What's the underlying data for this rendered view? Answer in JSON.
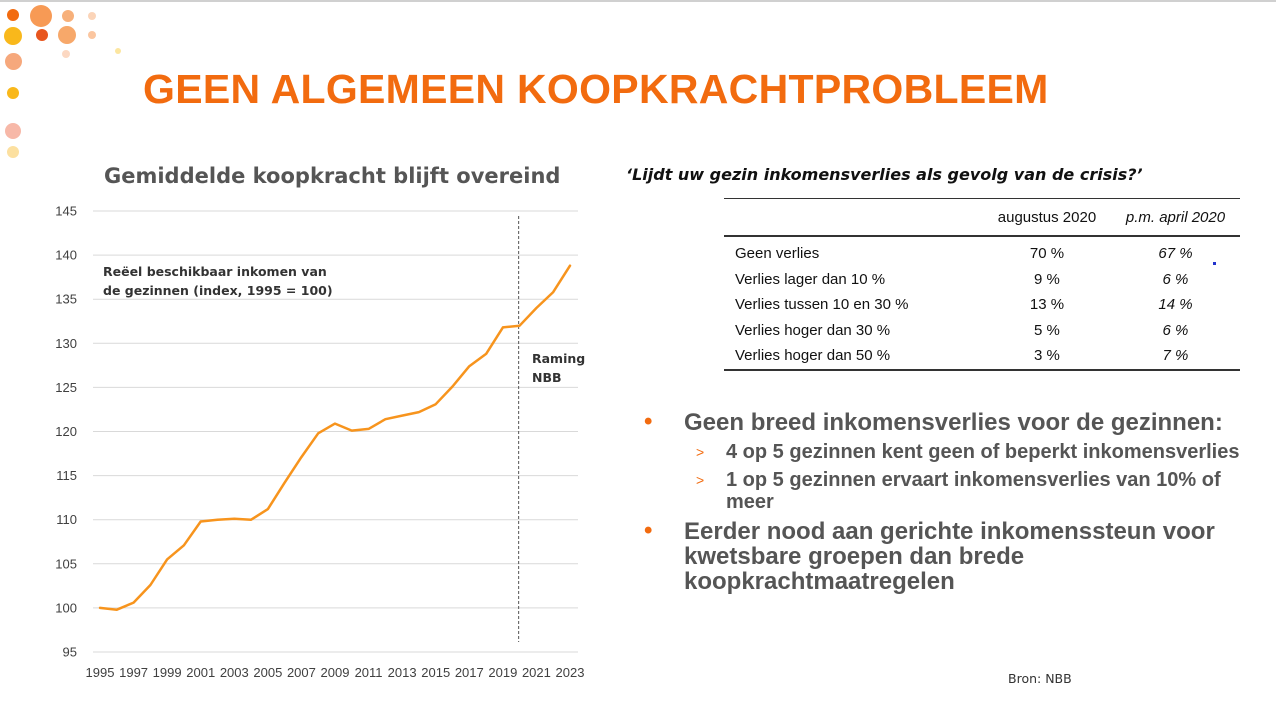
{
  "slide": {
    "title": "GEEN ALGEMEEN KOOPKRACHTPROBLEEM",
    "accent_color": "#f26b0f",
    "source": "Bron: NBB"
  },
  "chart_data": {
    "type": "line",
    "title": "Gemiddelde koopkracht blijft overeind",
    "xlabel": "",
    "ylabel": "",
    "x": [
      1995,
      1996,
      1997,
      1998,
      1999,
      2000,
      2001,
      2002,
      2003,
      2004,
      2005,
      2006,
      2007,
      2008,
      2009,
      2010,
      2011,
      2012,
      2013,
      2014,
      2015,
      2016,
      2017,
      2018,
      2019,
      2020,
      2021,
      2022,
      2023
    ],
    "x_tick_labels": [
      "1995",
      "1997",
      "1999",
      "2001",
      "2003",
      "2005",
      "2007",
      "2009",
      "2011",
      "2013",
      "2015",
      "2017",
      "2019",
      "2021",
      "2023"
    ],
    "series": [
      {
        "values": [
          100.0,
          99.8,
          100.6,
          102.6,
          105.5,
          107.1,
          109.8,
          110.0,
          110.1,
          110.0,
          111.2,
          114.2,
          117.1,
          119.8,
          120.9,
          120.1,
          120.3,
          121.4,
          121.8,
          122.2,
          123.1,
          125.1,
          127.4,
          128.8,
          131.8,
          132.0,
          134.0,
          135.8,
          138.8
        ],
        "color": "#f7941d"
      }
    ],
    "ylim": [
      95,
      145
    ],
    "y_ticks": [
      95,
      100,
      105,
      110,
      115,
      120,
      125,
      130,
      135,
      140,
      145
    ],
    "grid": true,
    "forecast_start": 2020,
    "annotations": [
      {
        "lines": [
          "Reëel beschikbaar inkomen van",
          "de gezinnen (index, 1995 = 100)"
        ]
      },
      {
        "lines": [
          "Raming",
          "NBB"
        ]
      }
    ]
  },
  "survey_table": {
    "title": "‘Lijdt uw gezin inkomensverlies als gevolg van de crisis?’",
    "columns": [
      "augustus 2020",
      "p.m. april 2020"
    ],
    "rows": [
      {
        "label": "Geen verlies",
        "aug": "70 %",
        "apr": "67 %"
      },
      {
        "label": "Verlies lager dan 10 %",
        "aug": "9 %",
        "apr": "6 %"
      },
      {
        "label": "Verlies tussen 10 en 30 %",
        "aug": "13 %",
        "apr": "14 %"
      },
      {
        "label": "Verlies hoger dan 30 %",
        "aug": "5 %",
        "apr": "6 %"
      },
      {
        "label": "Verlies hoger dan 50 %",
        "aug": "3 %",
        "apr": "7 %"
      }
    ]
  },
  "bullets": {
    "b1": "Geen breed inkomensverlies voor de gezinnen:",
    "b1_sub1": "4 op 5 gezinnen kent geen of beperkt inkomensverlies",
    "b1_sub2": "1 op 5 gezinnen ervaart inkomensverlies van 10% of meer",
    "b2": "Eerder nood aan gerichte inkomenssteun voor kwetsbare groepen dan brede koopkrachtmaatregelen",
    "bullet_glyph": "•",
    "sub_glyph": ">"
  }
}
